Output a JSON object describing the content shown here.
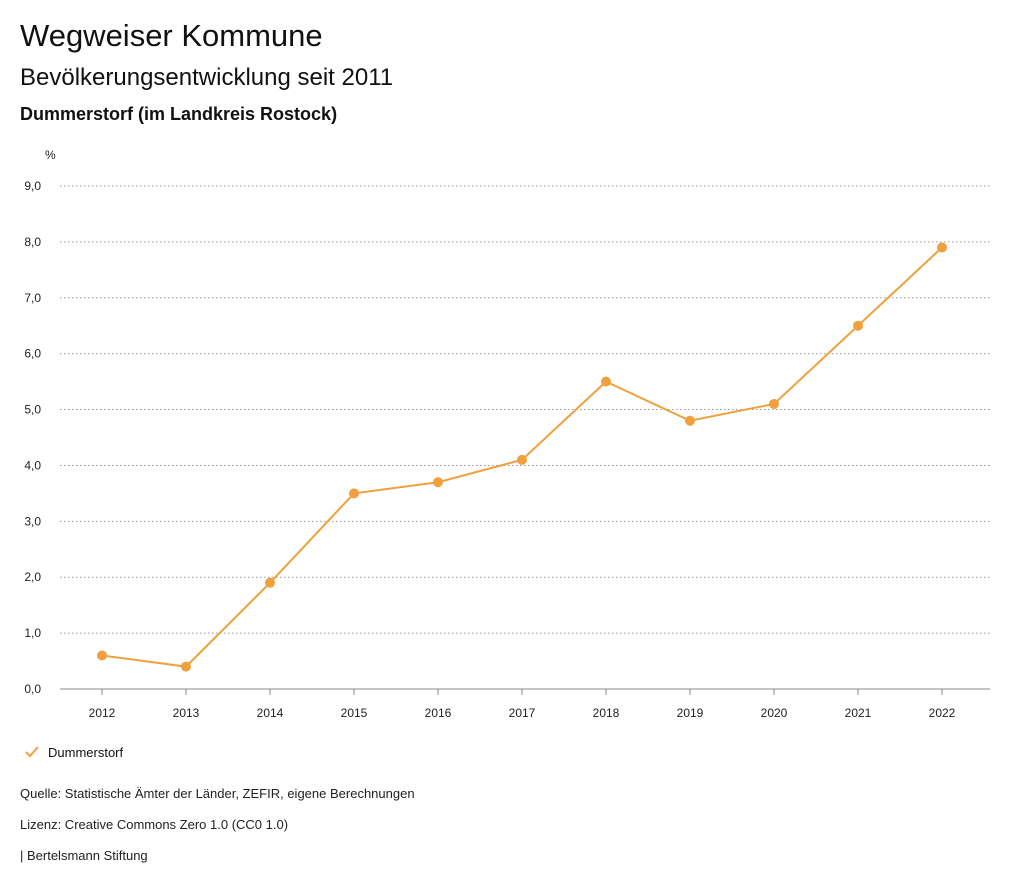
{
  "header": {
    "title": "Wegweiser Kommune",
    "subtitle": "Bevölkerungsentwicklung seit 2011",
    "region": "Dummerstorf (im Landkreis Rostock)"
  },
  "legend": {
    "label": "Dummerstorf"
  },
  "footer": {
    "source": "Quelle: Statistische Ämter der Länder, ZEFIR, eigene Berechnungen",
    "license": "Lizenz: Creative Commons Zero 1.0 (CC0 1.0)",
    "publisher": "| Bertelsmann Stiftung"
  },
  "colors": {
    "series": "#f0a03c",
    "grid": "#999999"
  },
  "chart_data": {
    "type": "line",
    "title": "Bevölkerungsentwicklung seit 2011",
    "ylabel": "%",
    "xlabel": "",
    "ylim": [
      0,
      9
    ],
    "yticks": [
      "0,0",
      "1,0",
      "2,0",
      "3,0",
      "4,0",
      "5,0",
      "6,0",
      "7,0",
      "8,0",
      "9,0"
    ],
    "categories": [
      "2012",
      "2013",
      "2014",
      "2015",
      "2016",
      "2017",
      "2018",
      "2019",
      "2020",
      "2021",
      "2022"
    ],
    "series": [
      {
        "name": "Dummerstorf",
        "values": [
          0.6,
          0.4,
          1.9,
          3.5,
          3.7,
          4.1,
          5.5,
          4.8,
          5.1,
          6.5,
          7.9
        ]
      }
    ]
  }
}
